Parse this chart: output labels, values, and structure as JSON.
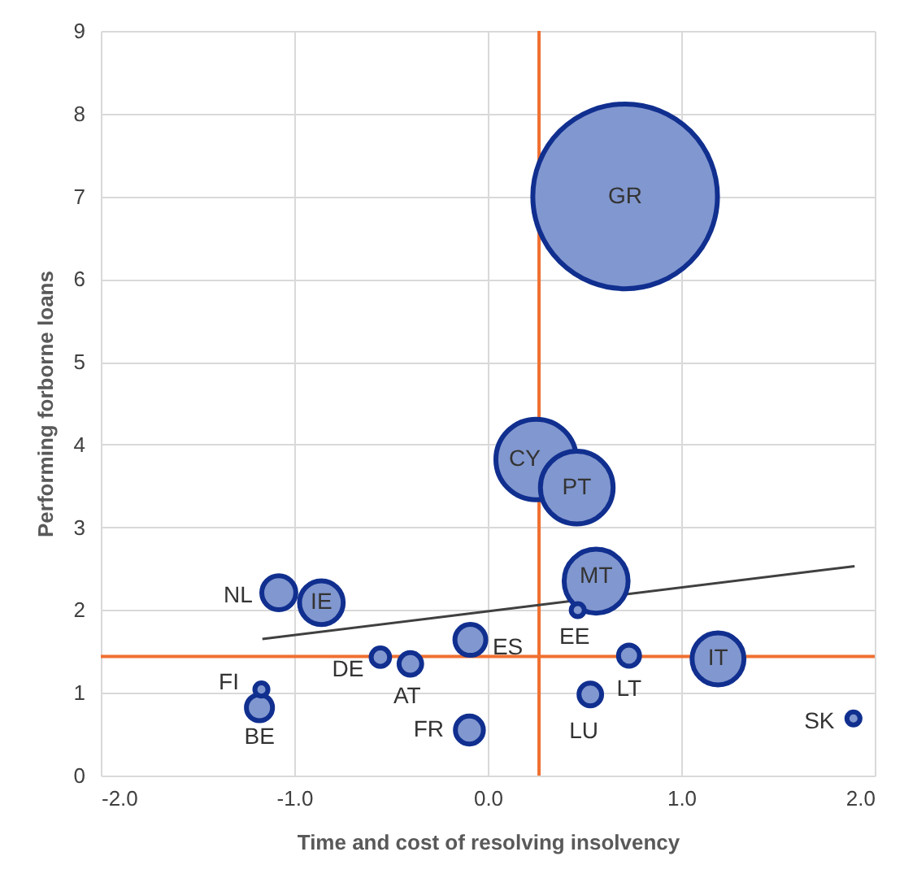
{
  "chart_data": {
    "type": "bubble",
    "xlabel": "Time and cost of resolving insolvency",
    "ylabel": "Performing forborne loans",
    "xlim": [
      -2,
      2
    ],
    "xticks": [
      {
        "value": -2,
        "label": "-2.0"
      },
      {
        "value": -1,
        "label": "-1.0"
      },
      {
        "value": 0,
        "label": "0.0"
      },
      {
        "value": 1,
        "label": "1.0"
      },
      {
        "value": 2,
        "label": "2.0"
      }
    ],
    "ylim": [
      0,
      9
    ],
    "yticks": [
      0,
      1,
      2,
      3,
      4,
      5,
      6,
      7,
      8,
      9
    ],
    "grid": true,
    "series": [
      {
        "type": "line",
        "color": "#404040",
        "x": [
          -1.165,
          1.896
        ],
        "values": [
          1.65,
          2.53
        ]
      },
      {
        "color": "#8197cf",
        "marker": "circle",
        "x": [
          0.71,
          0.25,
          0.46,
          0.56,
          1.19,
          -0.86,
          -1.08,
          -0.09,
          -0.095,
          -1.18,
          -0.4,
          0.53,
          0.73,
          -0.555,
          0.465,
          1.89,
          -1.17
        ],
        "values": [
          7.0,
          3.82,
          3.48,
          2.35,
          1.41,
          2.09,
          2.21,
          1.64,
          0.55,
          0.82,
          1.35,
          0.98,
          1.45,
          1.43,
          2.0,
          0.69,
          1.04
        ],
        "sizes": [
          1,
          0.19,
          0.155,
          0.12,
          0.079,
          0.056,
          0.034,
          0.028,
          0.023,
          0.02,
          0.015,
          0.015,
          0.013,
          0.01,
          0.005,
          0.005,
          0.005
        ]
      }
    ],
    "ref_lines": [
      {
        "axis": "x",
        "value": 0.265,
        "color": "#f07030"
      },
      {
        "axis": "y",
        "value": 1.44,
        "color": "#f07030"
      }
    ],
    "annotations": [
      {
        "text": "GR",
        "x": 0.71,
        "y": 7.0
      },
      {
        "text": "CY",
        "x": 0.25,
        "y": 3.82
      },
      {
        "text": "PT",
        "x": 0.46,
        "y": 3.48
      },
      {
        "text": "MT",
        "x": 0.56,
        "y": 2.35
      },
      {
        "text": "IT",
        "x": 1.19,
        "y": 1.41
      },
      {
        "text": "IE",
        "x": -0.86,
        "y": 2.09
      },
      {
        "text": "NL",
        "x": -1.08,
        "y": 2.21
      },
      {
        "text": "ES",
        "x": -0.09,
        "y": 1.64
      },
      {
        "text": "FR",
        "x": -0.095,
        "y": 0.55
      },
      {
        "text": "BE",
        "x": -1.18,
        "y": 0.82
      },
      {
        "text": "AT",
        "x": -0.4,
        "y": 1.35
      },
      {
        "text": "LU",
        "x": 0.53,
        "y": 0.98
      },
      {
        "text": "LT",
        "x": 0.73,
        "y": 1.45
      },
      {
        "text": "DE",
        "x": -0.555,
        "y": 1.43
      },
      {
        "text": "EE",
        "x": 0.465,
        "y": 2.0
      },
      {
        "text": "SK",
        "x": 1.89,
        "y": 0.69
      },
      {
        "text": "FI",
        "x": -1.17,
        "y": 1.04
      }
    ]
  }
}
